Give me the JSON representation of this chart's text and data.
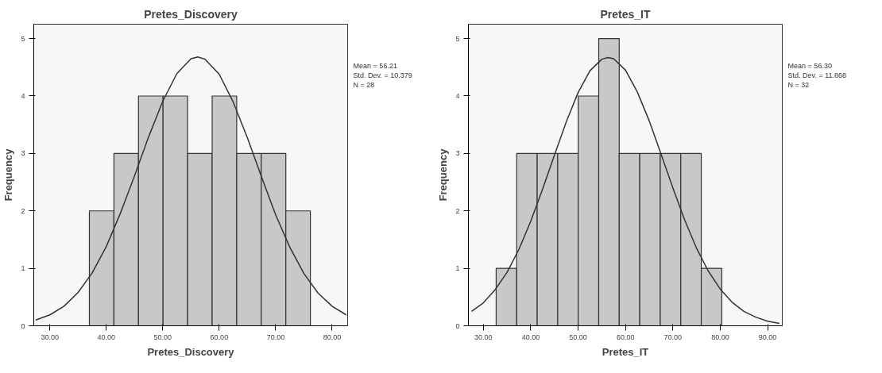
{
  "chart_data": [
    {
      "type": "histogram",
      "title": "Pretes_Discovery",
      "xlabel": "Pretes_Discovery",
      "ylabel": "Frequency",
      "series": [
        {
          "color": "#c8c8c8",
          "bins": [
            37.0,
            41.35,
            45.7,
            50.05,
            54.4,
            58.75,
            63.1,
            67.45,
            71.8,
            76.15
          ],
          "values": [
            2,
            3,
            4,
            4,
            3,
            4,
            3,
            3,
            2
          ]
        },
        {
          "type": "line",
          "color": "#333333",
          "x": [
            27.5,
            30,
            32.5,
            35,
            37.5,
            40,
            42.5,
            45,
            47.5,
            50,
            52.5,
            55,
            56.21,
            57.5,
            60,
            62.5,
            65,
            67.5,
            70,
            72.5,
            75,
            77.5,
            80,
            82.5
          ],
          "values": [
            0.1,
            0.19,
            0.34,
            0.58,
            0.92,
            1.38,
            1.96,
            2.61,
            3.29,
            3.91,
            4.39,
            4.65,
            4.68,
            4.64,
            4.38,
            3.89,
            3.27,
            2.59,
            1.93,
            1.37,
            0.91,
            0.57,
            0.34,
            0.19
          ]
        }
      ],
      "xlim": [
        27.15,
        82.75
      ],
      "ylim": [
        0,
        5.25
      ],
      "xticks": [
        {
          "value": 30,
          "label": "30.00"
        },
        {
          "value": 40,
          "label": "40.00"
        },
        {
          "value": 50,
          "label": "50.00"
        },
        {
          "value": 60,
          "label": "60.00"
        },
        {
          "value": 70,
          "label": "70.00"
        },
        {
          "value": 80,
          "label": "80.00"
        }
      ],
      "yticks": [
        0,
        1,
        2,
        3,
        4,
        5
      ],
      "grid": false,
      "annotations": [
        "Mean = 56.21",
        "Std. Dev. = 10.379",
        "N = 28"
      ]
    },
    {
      "type": "histogram",
      "title": "Pretes_IT",
      "xlabel": "Pretes_IT",
      "ylabel": "Frequency",
      "series": [
        {
          "color": "#c8c8c8",
          "bins": [
            32.7,
            37.03,
            41.36,
            45.69,
            50.02,
            54.35,
            58.68,
            63.01,
            67.34,
            71.67,
            76.0,
            80.33
          ],
          "values": [
            1,
            3,
            3,
            3,
            4,
            5,
            3,
            3,
            3,
            3,
            1
          ]
        },
        {
          "type": "line",
          "color": "#333333",
          "x": [
            27.5,
            30,
            32.5,
            35,
            37.5,
            40,
            42.5,
            45,
            47.5,
            50,
            52.5,
            55,
            56.3,
            57.5,
            60,
            62.5,
            65,
            67.5,
            70,
            72.5,
            75,
            77.5,
            80,
            82.5,
            85,
            87.5,
            90,
            92.5
          ],
          "values": [
            0.25,
            0.4,
            0.63,
            0.93,
            1.33,
            1.82,
            2.38,
            2.97,
            3.55,
            4.06,
            4.44,
            4.64,
            4.67,
            4.65,
            4.45,
            4.07,
            3.57,
            2.99,
            2.4,
            1.84,
            1.35,
            0.95,
            0.64,
            0.41,
            0.25,
            0.15,
            0.08,
            0.04
          ]
        }
      ],
      "xlim": [
        26.84,
        93.1
      ],
      "ylim": [
        0,
        5.25
      ],
      "xticks": [
        {
          "value": 30,
          "label": "30.00"
        },
        {
          "value": 40,
          "label": "40.00"
        },
        {
          "value": 50,
          "label": "50.00"
        },
        {
          "value": 60,
          "label": "60.00"
        },
        {
          "value": 70,
          "label": "70.00"
        },
        {
          "value": 80,
          "label": "80.00"
        },
        {
          "value": 90,
          "label": "90.00"
        }
      ],
      "yticks": [
        0,
        1,
        2,
        3,
        4,
        5
      ],
      "grid": false,
      "annotations": [
        "Mean = 56.30",
        "Std. Dev. = 11.868",
        "N = 32"
      ]
    }
  ]
}
